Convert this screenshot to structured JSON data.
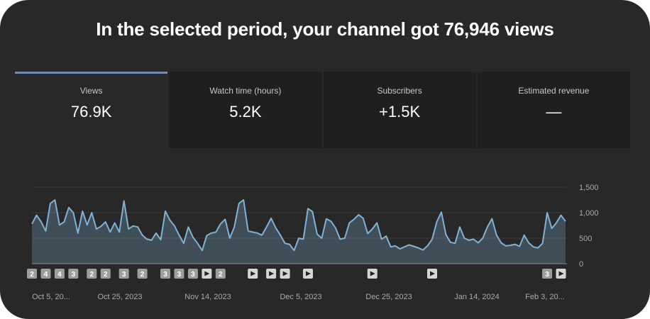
{
  "headline": "In the selected period, your channel got 76,946 views",
  "tabs": [
    {
      "label": "Views",
      "value": "76.9K",
      "active": true
    },
    {
      "label": "Watch time (hours)",
      "value": "5.2K",
      "active": false
    },
    {
      "label": "Subscribers",
      "value": "+1.5K",
      "active": false
    },
    {
      "label": "Estimated revenue",
      "value": "—",
      "active": false
    }
  ],
  "colors": {
    "line": "#7fb3d5",
    "accent": "#5f8fd8"
  },
  "chart_data": {
    "type": "area",
    "x_tick_labels": [
      "Oct 5, 20...",
      "Oct 25, 2023",
      "Nov 14, 2023",
      "Dec 5, 2023",
      "Dec 25, 2023",
      "Jan 14, 2024",
      "Feb 3, 20..."
    ],
    "y_tick_labels": [
      "1,500",
      "1,000",
      "500",
      "0"
    ],
    "ylim": [
      0,
      1500
    ],
    "grid": true,
    "series": [
      {
        "values": [
          780,
          950,
          820,
          640,
          1180,
          1250,
          760,
          820,
          1100,
          1000,
          600,
          1030,
          760,
          1000,
          680,
          730,
          820,
          620,
          800,
          620,
          1230,
          680,
          740,
          720,
          560,
          480,
          460,
          600,
          470,
          1030,
          850,
          740,
          560,
          400,
          720,
          520,
          400,
          260,
          550,
          600,
          620,
          780,
          870,
          500,
          720,
          1180,
          1250,
          640,
          620,
          600,
          560,
          720,
          890,
          700,
          560,
          400,
          380,
          260,
          500,
          480,
          1080,
          1020,
          580,
          500,
          880,
          830,
          700,
          480,
          500,
          800,
          870,
          960,
          890,
          590,
          680,
          800,
          480,
          540,
          330,
          350,
          290,
          330,
          370,
          340,
          310,
          270,
          350,
          480,
          820,
          1010,
          570,
          420,
          400,
          720,
          500,
          460,
          480,
          410,
          500,
          720,
          880,
          560,
          410,
          350,
          360,
          380,
          340,
          560,
          410,
          330,
          310,
          400,
          1000,
          690,
          800,
          950,
          830
        ]
      }
    ],
    "markers": [
      {
        "index": 0,
        "label": "2"
      },
      {
        "index": 3,
        "label": "4"
      },
      {
        "index": 6,
        "label": "4"
      },
      {
        "index": 9,
        "label": "3"
      },
      {
        "index": 13,
        "label": "2"
      },
      {
        "index": 16,
        "label": "2"
      },
      {
        "index": 20,
        "label": "3"
      },
      {
        "index": 24,
        "label": "2"
      },
      {
        "index": 29,
        "label": "3"
      },
      {
        "index": 32,
        "label": "3"
      },
      {
        "index": 35,
        "label": "3"
      },
      {
        "index": 38,
        "label": "play"
      },
      {
        "index": 41,
        "label": "2"
      },
      {
        "index": 48,
        "label": "play"
      },
      {
        "index": 52,
        "label": "play"
      },
      {
        "index": 55,
        "label": "play"
      },
      {
        "index": 60,
        "label": "play"
      },
      {
        "index": 74,
        "label": "play"
      },
      {
        "index": 87,
        "label": "play"
      },
      {
        "index": 112,
        "label": "3"
      },
      {
        "index": 115,
        "label": "play"
      }
    ]
  }
}
